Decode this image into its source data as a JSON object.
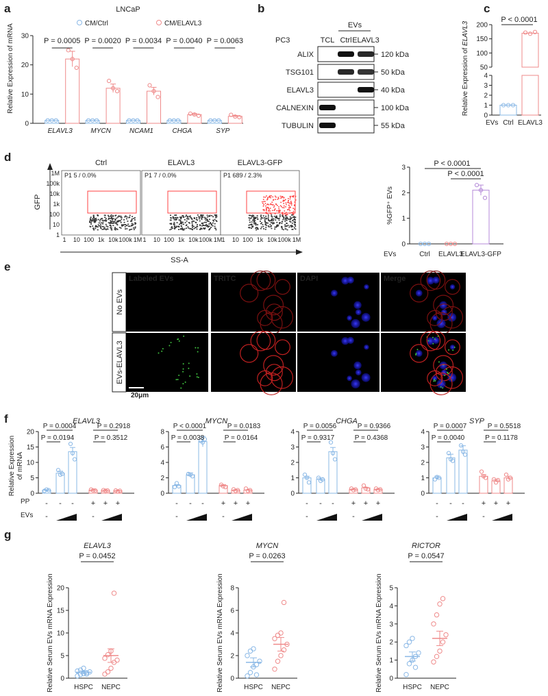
{
  "colors": {
    "ctrl": "#8ab8e6",
    "elavl3": "#ef8a8a",
    "gfp": "#b48ad8",
    "green": "#3fbf3f",
    "red": "#ff4040",
    "blue": "#6c6cf0"
  },
  "panel_a": {
    "letter": "a",
    "title": "LNCaP",
    "ylabel": "Relative Expression of mRNA",
    "legend": [
      "CM/Ctrl",
      "CM/ELAVL3"
    ],
    "chart_data": {
      "type": "bar",
      "categories": [
        "ELAVL3",
        "MYCN",
        "NCAM1",
        "CHGA",
        "SYP"
      ],
      "ylim": [
        0,
        30
      ],
      "yticks": [
        "0",
        "10",
        "20",
        "30"
      ],
      "series": [
        {
          "name": "CM/Ctrl",
          "values": [
            1,
            1,
            1,
            1,
            1
          ],
          "points": [
            [
              1,
              1,
              1
            ],
            [
              1,
              1,
              1
            ],
            [
              1,
              1,
              1
            ],
            [
              1,
              1,
              1
            ],
            [
              1,
              1,
              1
            ]
          ]
        },
        {
          "name": "CM/ELAVL3",
          "values": [
            22,
            12,
            11,
            3,
            2.4
          ],
          "points": [
            [
              25,
              22,
              19
            ],
            [
              14.5,
              12,
              11
            ],
            [
              13,
              11,
              9
            ],
            [
              3.3,
              3,
              2.6
            ],
            [
              2.9,
              2.3,
              2.1
            ]
          ]
        }
      ],
      "pvalues": [
        "P = 0.0005",
        "P = 0.0020",
        "P = 0.0034",
        "P = 0.0040",
        "P = 0.0063"
      ]
    }
  },
  "panel_b": {
    "letter": "b",
    "cell": "PC3",
    "header": "EVs",
    "lanes": [
      "TCL",
      "Ctrl",
      "ELAVL3"
    ],
    "blots": [
      {
        "name": "ALIX",
        "size": "120 kDa"
      },
      {
        "name": "TSG101",
        "size": "50 kDa"
      },
      {
        "name": "ELAVL3",
        "size": "40 kDa"
      },
      {
        "name": "CALNEXIN",
        "size": "100 kDa"
      },
      {
        "name": "TUBULIN",
        "size": "55 kDa"
      }
    ]
  },
  "panel_c": {
    "letter": "c",
    "ylabel_pre": "Relative Expression of ",
    "ylabel_gene": "ELAVL3",
    "xlabel": "EVs",
    "pvalue": "P < 0.0001",
    "chart_data": {
      "type": "bar",
      "categories": [
        "Ctrl",
        "ELAVL3"
      ],
      "values": [
        1,
        170
      ],
      "points": [
        [
          1,
          1,
          1
        ],
        [
          172,
          168,
          174
        ]
      ],
      "yticks_low": [
        "0",
        "1",
        "2",
        "3",
        "4"
      ],
      "yticks_high": [
        "50",
        "100",
        "150",
        "200"
      ]
    }
  },
  "panel_d": {
    "letter": "d",
    "flow": {
      "titles": [
        "Ctrl",
        "ELAVL3",
        "ELAVL3-GFP"
      ],
      "gates": [
        "P1  5 / 0.0%",
        "P1  7 / 0.0%",
        "P1  689 / 2.3%"
      ],
      "ticks": [
        "1",
        "10",
        "100",
        "1k",
        "10k",
        "100k",
        "1M"
      ],
      "ylabel": "GFP",
      "xlabel": "SS-A"
    },
    "bar": {
      "ylabel": "%GFP⁺ EVs",
      "xlabel": "EVs",
      "pvalues": [
        "P < 0.0001",
        "P < 0.0001"
      ],
      "chart_data": {
        "type": "bar",
        "categories": [
          "Ctrl",
          "ELAVL3",
          "ELAVL3-GFP"
        ],
        "values": [
          0,
          0,
          2.1
        ],
        "points": [
          [
            0,
            0,
            0
          ],
          [
            0,
            0,
            0
          ],
          [
            2.3,
            2.1,
            1.8
          ]
        ],
        "ylim": [
          0,
          3
        ],
        "yticks": [
          "0",
          "1",
          "2",
          "3"
        ]
      }
    }
  },
  "panel_e": {
    "letter": "e",
    "columns": [
      "Labeled EVs",
      "TRITC",
      "DAPI",
      "Merge"
    ],
    "rows": [
      "No EVs",
      "EVs-ELAVL3"
    ],
    "scale": "20μm"
  },
  "panel_f": {
    "letter": "f",
    "ylabel1": "Relative Expression",
    "ylabel2": "of mRNA",
    "pp_label": "PP",
    "evs_label": "EVs",
    "pp_signs": [
      "-",
      "-",
      "-",
      "+",
      "+",
      "+"
    ],
    "evs_signs": [
      "-",
      "",
      "",
      " -",
      "",
      ""
    ],
    "charts": [
      {
        "gene": "ELAVL3",
        "ylim": [
          0,
          20
        ],
        "yticks": [
          "0",
          "5",
          "10",
          "15",
          "20"
        ],
        "values": [
          1,
          6.5,
          13.5,
          1,
          0.9,
          0.8
        ],
        "points": [
          [
            0.8,
            1.2,
            1
          ],
          [
            7.5,
            6,
            6.3
          ],
          [
            16,
            13,
            11
          ]
        ],
        "points2": [
          [
            1.2,
            0.9,
            0.9
          ],
          [
            1,
            0.8,
            0.9
          ],
          [
            0.9,
            0.6,
            0.8
          ]
        ],
        "p_top": [
          "P = 0.0004",
          "P = 0.2918"
        ],
        "p_bot": [
          "P = 0.0194",
          "P = 0.3512"
        ]
      },
      {
        "gene": "MYCN",
        "ylim": [
          0,
          8
        ],
        "yticks": [
          "0",
          "2",
          "4",
          "6",
          "8"
        ],
        "values": [
          1,
          2.4,
          6.7,
          1,
          0.4,
          0.4
        ],
        "points": [
          [
            0.8,
            1.3,
            0.9
          ],
          [
            2.5,
            2.4,
            2.2
          ],
          [
            6.8,
            6.6,
            7
          ]
        ],
        "points2": [
          [
            1.1,
            0.9,
            0.8
          ],
          [
            0.5,
            0.3,
            0.4
          ],
          [
            0.6,
            0.3,
            0.4
          ]
        ],
        "p_top": [
          "P < 0.0001",
          "P = 0.0183"
        ],
        "p_bot": [
          "P = 0.0038",
          "P = 0.0164"
        ]
      },
      {
        "gene": "CHGA",
        "ylim": [
          0,
          4
        ],
        "yticks": [
          "0",
          "1",
          "2",
          "3",
          "4"
        ],
        "values": [
          1,
          0.9,
          2.7,
          0.25,
          0.35,
          0.25
        ],
        "points": [
          [
            1.2,
            1,
            0.7
          ],
          [
            1,
            0.8,
            0.9
          ],
          [
            3.3,
            2.6,
            2.2
          ]
        ],
        "points2": [
          [
            0.3,
            0.2,
            0.25
          ],
          [
            0.5,
            0.3,
            0.25
          ],
          [
            0.3,
            0.2,
            0.25
          ]
        ],
        "p_top": [
          "P = 0.0056",
          "P = 0.9366"
        ],
        "p_bot": [
          "P = 0.9317",
          "P = 0.4368"
        ]
      },
      {
        "gene": "SYP",
        "ylim": [
          0,
          4
        ],
        "yticks": [
          "0",
          "1",
          "2",
          "3",
          "4"
        ],
        "values": [
          1,
          2.3,
          2.8,
          1.1,
          0.8,
          1
        ],
        "points": [
          [
            0.9,
            1.05,
            1
          ],
          [
            2.6,
            2.2,
            2.1
          ],
          [
            3.1,
            2.7,
            2.5
          ]
        ],
        "points2": [
          [
            1.4,
            1.1,
            1
          ],
          [
            0.9,
            0.7,
            0.85
          ],
          [
            1.2,
            0.9,
            1
          ]
        ],
        "p_top": [
          "P = 0.0007",
          "P = 0.5518"
        ],
        "p_bot": [
          "P = 0.0040",
          "P = 0.1178"
        ]
      }
    ]
  },
  "panel_g": {
    "letter": "g",
    "ylabel": "Relative Serum EVs mRNA Expression",
    "charts": [
      {
        "gene": "ELAVL3",
        "pvalue": "P = 0.0452",
        "categories": [
          "HSPC",
          "NEPC"
        ],
        "ylim": [
          0,
          20
        ],
        "yticks": [
          "0",
          "5",
          "10",
          "15",
          "20"
        ],
        "means": [
          1.3,
          5
        ],
        "sems": [
          0.3,
          1.5
        ],
        "points": [
          [
            0.5,
            0.8,
            1,
            1.2,
            1.4,
            1.6,
            1.8,
            2.2,
            0.9
          ],
          [
            0.9,
            1.4,
            2.2,
            3.5,
            4,
            4.4,
            5.2,
            6,
            18.8
          ]
        ]
      },
      {
        "gene": "MYCN",
        "pvalue": "P = 0.0263",
        "categories": [
          "HSPC",
          "NEPC"
        ],
        "ylim": [
          0,
          8
        ],
        "yticks": [
          "0",
          "2",
          "4",
          "6",
          "8"
        ],
        "means": [
          1.4,
          3
        ],
        "sems": [
          0.4,
          0.6
        ],
        "points": [
          [
            0.2,
            0.5,
            1,
            1.2,
            1.5,
            2,
            2.4,
            2.6,
            0.3
          ],
          [
            0.8,
            1.5,
            2,
            2.5,
            3,
            3.5,
            3.8,
            4,
            6.7
          ]
        ]
      },
      {
        "gene": "RICTOR",
        "pvalue": "P = 0.0547",
        "categories": [
          "HSPC",
          "NEPC"
        ],
        "ylim": [
          0,
          5
        ],
        "yticks": [
          "0",
          "1",
          "2",
          "3",
          "4",
          "5"
        ],
        "means": [
          1.2,
          2.2
        ],
        "sems": [
          0.25,
          0.4
        ],
        "points": [
          [
            0.2,
            0.8,
            1,
            1.2,
            1.4,
            1.8,
            2,
            2.2,
            0.6
          ],
          [
            0.9,
            1.2,
            1.5,
            2,
            2.4,
            3,
            3.5,
            4.1,
            4.4
          ]
        ]
      }
    ]
  }
}
